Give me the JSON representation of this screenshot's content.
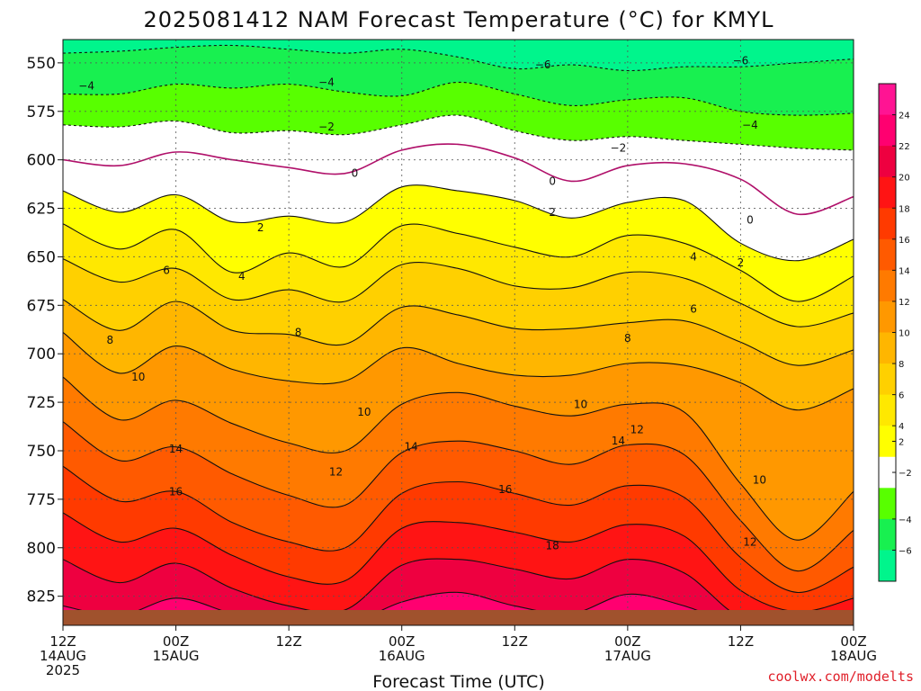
{
  "header": {
    "title": "2025081412 NAM Forecast Temperature (°C) for KMYL"
  },
  "credit": "coolwx.com/modelts",
  "colors": {
    "ground": "#a0522d",
    "freezing_line": "#b0106a",
    "contour_line": "#111111"
  },
  "chart_data": {
    "type": "heatmap",
    "title": "2025081412 NAM Forecast Temperature (°C) for KMYL",
    "xlabel": "Forecast Time (UTC)",
    "ylabel": "",
    "y_axis": {
      "unit": "hPa",
      "ticks": [
        550,
        575,
        600,
        625,
        650,
        675,
        700,
        725,
        750,
        775,
        800,
        825
      ],
      "range": [
        538,
        840
      ],
      "inverted": true
    },
    "x_axis": {
      "range_hours": [
        0,
        84
      ],
      "ticks": [
        {
          "hour": 0,
          "lines": [
            "12Z",
            "14AUG",
            "2025"
          ]
        },
        {
          "hour": 12,
          "lines": [
            "00Z",
            "15AUG"
          ]
        },
        {
          "hour": 24,
          "lines": [
            "12Z"
          ]
        },
        {
          "hour": 36,
          "lines": [
            "00Z",
            "16AUG"
          ]
        },
        {
          "hour": 48,
          "lines": [
            "12Z"
          ]
        },
        {
          "hour": 60,
          "lines": [
            "00Z",
            "17AUG"
          ]
        },
        {
          "hour": 72,
          "lines": [
            "12Z"
          ]
        },
        {
          "hour": 84,
          "lines": [
            "00Z",
            "18AUG"
          ]
        }
      ]
    },
    "grid": true,
    "legend": "right",
    "colorbar": [
      {
        "from": -8,
        "to": -6,
        "color": "#00f58c"
      },
      {
        "from": -6,
        "to": -4,
        "color": "#18f050"
      },
      {
        "from": -4,
        "to": -2,
        "color": "#58ff00"
      },
      {
        "from": -2,
        "to": 2,
        "color": "#ffffff"
      },
      {
        "from": 2,
        "to": 4,
        "color": "#ffff00"
      },
      {
        "from": 4,
        "to": 6,
        "color": "#ffe800"
      },
      {
        "from": 6,
        "to": 8,
        "color": "#ffd000"
      },
      {
        "from": 8,
        "to": 10,
        "color": "#ffb600"
      },
      {
        "from": 10,
        "to": 12,
        "color": "#ff9800"
      },
      {
        "from": 12,
        "to": 14,
        "color": "#ff7a00"
      },
      {
        "from": 14,
        "to": 16,
        "color": "#ff5a00"
      },
      {
        "from": 16,
        "to": 18,
        "color": "#ff3a00"
      },
      {
        "from": 18,
        "to": 20,
        "color": "#ff1414"
      },
      {
        "from": 20,
        "to": 22,
        "color": "#ee0040"
      },
      {
        "from": 22,
        "to": 24,
        "color": "#ff0070"
      },
      {
        "from": 24,
        "to": 26,
        "color": "#ff1493"
      }
    ],
    "colorbar_labels": [
      24,
      22,
      20,
      18,
      16,
      14,
      12,
      10,
      8,
      6,
      4,
      2,
      -2,
      -4,
      -6
    ],
    "isotherms": [
      {
        "value": -6,
        "dashed": true,
        "hours": [
          0,
          6,
          12,
          18,
          24,
          30,
          36,
          42,
          48,
          54,
          60,
          66,
          72,
          78,
          84
        ],
        "pressure": [
          545,
          544,
          542,
          541,
          543,
          545,
          543,
          547,
          553,
          551,
          554,
          552,
          552,
          550,
          548
        ]
      },
      {
        "value": -4,
        "dashed": true,
        "hours": [
          0,
          6,
          12,
          18,
          24,
          30,
          36,
          42,
          48,
          54,
          60,
          66,
          72,
          78,
          84
        ],
        "pressure": [
          566,
          566,
          561,
          563,
          561,
          565,
          567,
          560,
          566,
          572,
          569,
          568,
          575,
          577,
          576
        ]
      },
      {
        "value": -2,
        "dashed": true,
        "hours": [
          0,
          6,
          12,
          18,
          24,
          30,
          36,
          42,
          48,
          54,
          60,
          66,
          72,
          78,
          84
        ],
        "pressure": [
          582,
          583,
          580,
          586,
          585,
          587,
          582,
          577,
          585,
          590,
          588,
          590,
          592,
          594,
          595
        ]
      },
      {
        "value": 0,
        "dashed": false,
        "hours": [
          0,
          6,
          12,
          18,
          24,
          30,
          36,
          42,
          48,
          54,
          60,
          66,
          72,
          78,
          84
        ],
        "pressure": [
          600,
          603,
          596,
          600,
          604,
          607,
          595,
          592,
          599,
          611,
          603,
          602,
          610,
          628,
          619
        ]
      },
      {
        "value": 2,
        "dashed": false,
        "hours": [
          0,
          6,
          12,
          18,
          24,
          30,
          36,
          42,
          48,
          54,
          60,
          66,
          72,
          78,
          84
        ],
        "pressure": [
          616,
          627,
          618,
          632,
          629,
          632,
          614,
          616,
          621,
          630,
          622,
          621,
          643,
          652,
          641
        ]
      },
      {
        "value": 4,
        "dashed": false,
        "hours": [
          0,
          6,
          12,
          18,
          24,
          30,
          36,
          42,
          48,
          54,
          60,
          66,
          72,
          78,
          84
        ],
        "pressure": [
          633,
          646,
          636,
          658,
          648,
          655,
          634,
          638,
          645,
          650,
          639,
          643,
          657,
          673,
          660
        ]
      },
      {
        "value": 6,
        "dashed": false,
        "hours": [
          0,
          6,
          12,
          18,
          24,
          30,
          36,
          42,
          48,
          54,
          60,
          66,
          72,
          78,
          84
        ],
        "pressure": [
          651,
          663,
          656,
          672,
          667,
          673,
          654,
          656,
          665,
          666,
          658,
          661,
          674,
          686,
          679
        ]
      },
      {
        "value": 8,
        "dashed": false,
        "hours": [
          0,
          6,
          12,
          18,
          24,
          30,
          36,
          42,
          48,
          54,
          60,
          66,
          72,
          78,
          84
        ],
        "pressure": [
          672,
          688,
          673,
          688,
          690,
          695,
          676,
          680,
          687,
          687,
          684,
          683,
          694,
          706,
          698
        ]
      },
      {
        "value": 10,
        "dashed": false,
        "hours": [
          0,
          6,
          12,
          18,
          24,
          30,
          36,
          42,
          48,
          54,
          60,
          66,
          72,
          78,
          84
        ],
        "pressure": [
          689,
          710,
          696,
          708,
          714,
          714,
          697,
          705,
          711,
          711,
          705,
          706,
          715,
          729,
          718
        ]
      },
      {
        "value": 12,
        "dashed": false,
        "hours": [
          0,
          6,
          12,
          18,
          24,
          30,
          36,
          42,
          48,
          54,
          60,
          66,
          72,
          78,
          84
        ],
        "pressure": [
          712,
          734,
          724,
          736,
          746,
          750,
          726,
          720,
          727,
          732,
          726,
          730,
          767,
          796,
          771
        ]
      },
      {
        "value": 14,
        "dashed": false,
        "hours": [
          0,
          6,
          12,
          18,
          24,
          30,
          36,
          42,
          48,
          54,
          60,
          66,
          72,
          78,
          84
        ],
        "pressure": [
          735,
          755,
          748,
          762,
          773,
          778,
          751,
          745,
          750,
          757,
          747,
          752,
          786,
          812,
          791
        ]
      },
      {
        "value": 16,
        "dashed": false,
        "hours": [
          0,
          6,
          12,
          18,
          24,
          30,
          36,
          42,
          48,
          54,
          60,
          66,
          72,
          78,
          84
        ],
        "pressure": [
          758,
          776,
          771,
          787,
          797,
          800,
          772,
          766,
          772,
          778,
          768,
          774,
          805,
          823,
          810
        ]
      },
      {
        "value": 18,
        "dashed": false,
        "hours": [
          0,
          6,
          12,
          18,
          24,
          30,
          36,
          42,
          48,
          54,
          60,
          66,
          72,
          78,
          84
        ],
        "pressure": [
          782,
          797,
          790,
          804,
          815,
          817,
          790,
          787,
          792,
          797,
          788,
          794,
          822,
          833,
          826
        ]
      },
      {
        "value": 20,
        "dashed": false,
        "hours": [
          0,
          6,
          12,
          18,
          24,
          30,
          36,
          42,
          48,
          54,
          60,
          66,
          72,
          78,
          84
        ],
        "pressure": [
          806,
          818,
          808,
          821,
          830,
          832,
          809,
          806,
          811,
          816,
          806,
          813,
          836,
          840,
          838
        ]
      },
      {
        "value": 22,
        "dashed": false,
        "hours": [
          0,
          6,
          12,
          18,
          24,
          30,
          36,
          42,
          48,
          54,
          60,
          66,
          72,
          78,
          84
        ],
        "pressure": [
          830,
          835,
          826,
          834,
          840,
          840,
          828,
          823,
          830,
          834,
          824,
          830,
          840,
          840,
          840
        ]
      }
    ],
    "contour_labels": [
      {
        "value": -6,
        "hour": 51,
        "pressure": 551
      },
      {
        "value": -6,
        "hour": 72,
        "pressure": 549
      },
      {
        "value": -4,
        "hour": 2.5,
        "pressure": 562
      },
      {
        "value": -4,
        "hour": 28,
        "pressure": 560
      },
      {
        "value": -4,
        "hour": 73,
        "pressure": 582
      },
      {
        "value": -2,
        "hour": 28,
        "pressure": 583
      },
      {
        "value": -2,
        "hour": 59,
        "pressure": 594
      },
      {
        "value": 0,
        "hour": 31,
        "pressure": 607
      },
      {
        "value": 0,
        "hour": 52,
        "pressure": 611
      },
      {
        "value": 0,
        "hour": 73,
        "pressure": 631
      },
      {
        "value": 2,
        "hour": 21,
        "pressure": 635
      },
      {
        "value": 2,
        "hour": 52,
        "pressure": 627
      },
      {
        "value": 2,
        "hour": 72,
        "pressure": 653
      },
      {
        "value": 4,
        "hour": 19,
        "pressure": 660
      },
      {
        "value": 4,
        "hour": 67,
        "pressure": 650
      },
      {
        "value": 6,
        "hour": 11,
        "pressure": 657
      },
      {
        "value": 6,
        "hour": 67,
        "pressure": 677
      },
      {
        "value": 8,
        "hour": 5,
        "pressure": 693
      },
      {
        "value": 8,
        "hour": 25,
        "pressure": 689
      },
      {
        "value": 8,
        "hour": 60,
        "pressure": 692
      },
      {
        "value": 10,
        "hour": 8,
        "pressure": 712
      },
      {
        "value": 10,
        "hour": 32,
        "pressure": 730
      },
      {
        "value": 10,
        "hour": 55,
        "pressure": 726
      },
      {
        "value": 10,
        "hour": 74,
        "pressure": 765
      },
      {
        "value": 12,
        "hour": 29,
        "pressure": 761
      },
      {
        "value": 12,
        "hour": 61,
        "pressure": 739
      },
      {
        "value": 12,
        "hour": 73,
        "pressure": 797
      },
      {
        "value": 14,
        "hour": 12,
        "pressure": 749
      },
      {
        "value": 14,
        "hour": 37,
        "pressure": 748
      },
      {
        "value": 14,
        "hour": 59,
        "pressure": 745
      },
      {
        "value": 16,
        "hour": 12,
        "pressure": 771
      },
      {
        "value": 16,
        "hour": 47,
        "pressure": 770
      },
      {
        "value": 18,
        "hour": 52,
        "pressure": 799
      }
    ]
  }
}
